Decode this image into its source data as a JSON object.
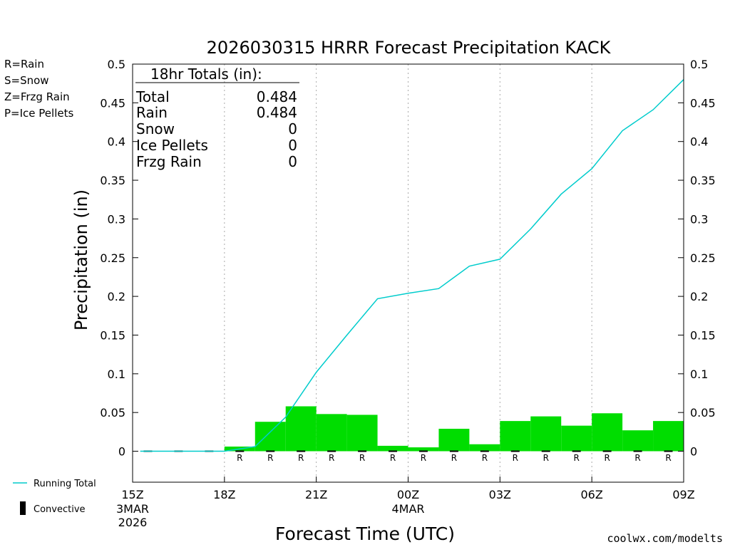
{
  "chart_data": {
    "type": "bar",
    "title": "2026030315 HRRR Forecast Precipitation KACK",
    "xlabel": "Forecast Time (UTC)",
    "ylabel": "Precipitation (in)",
    "ylim": [
      -0.04,
      0.5
    ],
    "y_ticks": [
      0,
      0.05,
      0.1,
      0.15,
      0.2,
      0.25,
      0.3,
      0.35,
      0.4,
      0.45,
      0.5
    ],
    "y_tick_labels": [
      "0",
      "0.05",
      "0.1",
      "0.15",
      "0.2",
      "0.25",
      "0.3",
      "0.35",
      "0.4",
      "0.45",
      "0.5"
    ],
    "xlim": [
      15,
      33
    ],
    "x_ticks": [
      {
        "hour": 15,
        "label": "15Z",
        "sub1": "3MAR",
        "sub2": "2026"
      },
      {
        "hour": 18,
        "label": "18Z",
        "sub1": "",
        "sub2": ""
      },
      {
        "hour": 21,
        "label": "21Z",
        "sub1": "",
        "sub2": ""
      },
      {
        "hour": 24,
        "label": "00Z",
        "sub1": "4MAR",
        "sub2": ""
      },
      {
        "hour": 27,
        "label": "03Z",
        "sub1": "",
        "sub2": ""
      },
      {
        "hour": 30,
        "label": "06Z",
        "sub1": "",
        "sub2": ""
      },
      {
        "hour": 33,
        "label": "09Z",
        "sub1": "",
        "sub2": ""
      }
    ],
    "grid_hours": [
      18,
      21,
      24,
      27,
      30
    ],
    "hourly_rain": {
      "name": "Rain",
      "color": "#00dd00",
      "hours": [
        16,
        17,
        18,
        19,
        20,
        21,
        22,
        23,
        24,
        25,
        26,
        27,
        28,
        29,
        30,
        31,
        32,
        33
      ],
      "values": [
        0,
        0,
        0,
        0.006,
        0.038,
        0.058,
        0.048,
        0.047,
        0.007,
        0.005,
        0.029,
        0.009,
        0.039,
        0.045,
        0.033,
        0.049,
        0.027,
        0.039
      ]
    },
    "running_total": {
      "name": "Running Total",
      "color": "#00cccc",
      "hours": [
        15.25,
        16,
        17,
        18,
        19,
        20,
        21,
        22,
        23,
        24,
        25,
        26,
        27,
        28,
        29,
        30,
        31,
        32,
        33
      ],
      "values": [
        0,
        0,
        0,
        0,
        0.006,
        0.044,
        0.102,
        0.15,
        0.197,
        0.204,
        0.21,
        0.239,
        0.248,
        0.287,
        0.332,
        0.365,
        0.414,
        0.441,
        0.48
      ]
    },
    "precip_type_markers": {
      "label": "R",
      "color": "#00cc00",
      "hours": [
        19,
        20,
        21,
        22,
        23,
        24,
        25,
        26,
        27,
        28,
        29,
        30,
        31,
        32,
        33
      ]
    },
    "convective_marker_hours": [
      16,
      17,
      18,
      19,
      20,
      21,
      22,
      23,
      24,
      25,
      26,
      27,
      28,
      29,
      30,
      31,
      32,
      33
    ]
  },
  "totals_box": {
    "header": "18hr Totals (in):",
    "rows": [
      {
        "label": "Total",
        "value": "0.484"
      },
      {
        "label": "Rain",
        "value": "0.484"
      },
      {
        "label": "Snow",
        "value": "0"
      },
      {
        "label": "Ice Pellets",
        "value": "0"
      },
      {
        "label": "Frzg Rain",
        "value": "0"
      }
    ]
  },
  "type_legend": [
    {
      "text": "R=Rain",
      "color": "#22cc22"
    },
    {
      "text": "S=Snow",
      "color": "#3355dd"
    },
    {
      "text": "Z=Frzg Rain",
      "color": "#ee8833"
    },
    {
      "text": "P=Ice Pellets",
      "color": "#dd2299"
    }
  ],
  "legend": {
    "running_total": "Running Total",
    "convective": "Convective"
  },
  "credit": "coolwx.com/modelts",
  "credit_color": "#cc2222"
}
